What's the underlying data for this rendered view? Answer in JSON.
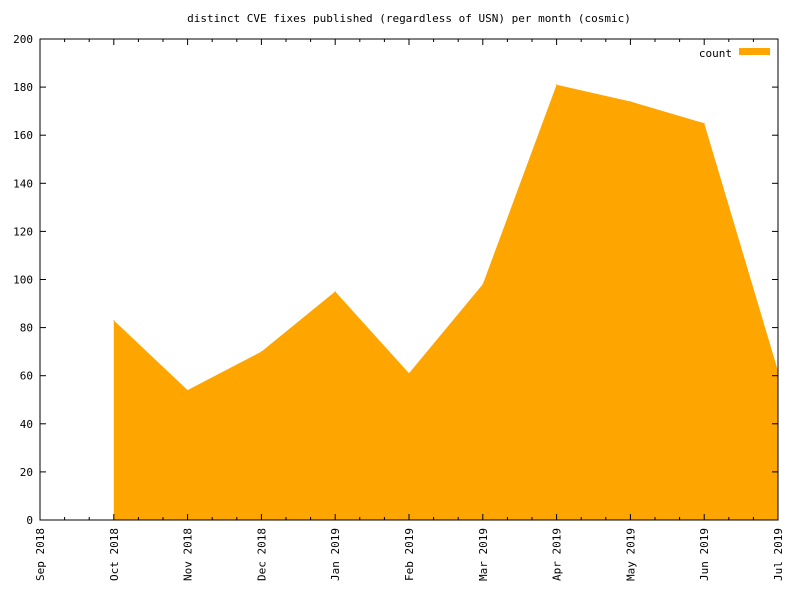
{
  "chart_data": {
    "type": "area",
    "title": "distinct CVE fixes published (regardless of USN) per month (cosmic)",
    "xlabel": "",
    "ylabel": "",
    "x_ticks": [
      "Sep 2018",
      "Oct 2018",
      "Nov 2018",
      "Dec 2018",
      "Jan 2019",
      "Feb 2019",
      "Mar 2019",
      "Apr 2019",
      "May 2019",
      "Jun 2019",
      "Jul 2019"
    ],
    "xlim": [
      "Sep 2018",
      "Jul 2019"
    ],
    "y_ticks": [
      0,
      20,
      40,
      60,
      80,
      100,
      120,
      140,
      160,
      180,
      200
    ],
    "ylim": [
      0,
      200
    ],
    "grid": false,
    "legend_position": "top-right",
    "series": [
      {
        "name": "count",
        "color": "#ffa500",
        "x": [
          "Oct 2018",
          "Nov 2018",
          "Dec 2018",
          "Jan 2019",
          "Feb 2019",
          "Mar 2019",
          "Apr 2019",
          "May 2019",
          "Jun 2019",
          "Jul 2019"
        ],
        "values": [
          83,
          54,
          70,
          95,
          61,
          98,
          181,
          174,
          165,
          62
        ]
      }
    ]
  }
}
